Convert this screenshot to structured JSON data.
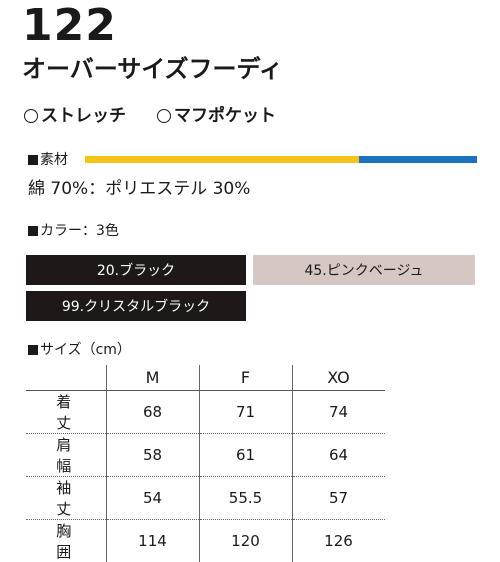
{
  "product": {
    "number": "122",
    "name": "オーバーサイズフーディ"
  },
  "features": [
    "ストレッチ",
    "マフポケット"
  ],
  "material": {
    "label": "素材",
    "text": "綿 70%：ポリエステル 30%",
    "composition": [
      {
        "name": "綿",
        "percent": 70,
        "color": "#f3c418"
      },
      {
        "name": "ポリエステル",
        "percent": 30,
        "color": "#1b72bd"
      }
    ]
  },
  "colors": {
    "label": "カラー：3色",
    "items": [
      {
        "label": "20.ブラック",
        "swatch": "#1e1818",
        "text_color": "#ffffff"
      },
      {
        "label": "45.ピンクベージュ",
        "swatch": "#d6c7c2",
        "text_color": "#1a1a1a"
      },
      {
        "label": "99.クリスタルブラック",
        "swatch": "#1e1818",
        "text_color": "#ffffff"
      }
    ]
  },
  "sizes": {
    "label": "サイズ（cm）",
    "columns": [
      "M",
      "F",
      "XO"
    ],
    "rows": [
      {
        "name": "着丈",
        "values": [
          "68",
          "71",
          "74"
        ]
      },
      {
        "name": "肩幅",
        "values": [
          "58",
          "61",
          "64"
        ]
      },
      {
        "name": "袖丈",
        "values": [
          "54",
          "55.5",
          "57"
        ]
      },
      {
        "name": "胸囲",
        "values": [
          "114",
          "120",
          "126"
        ]
      }
    ]
  }
}
